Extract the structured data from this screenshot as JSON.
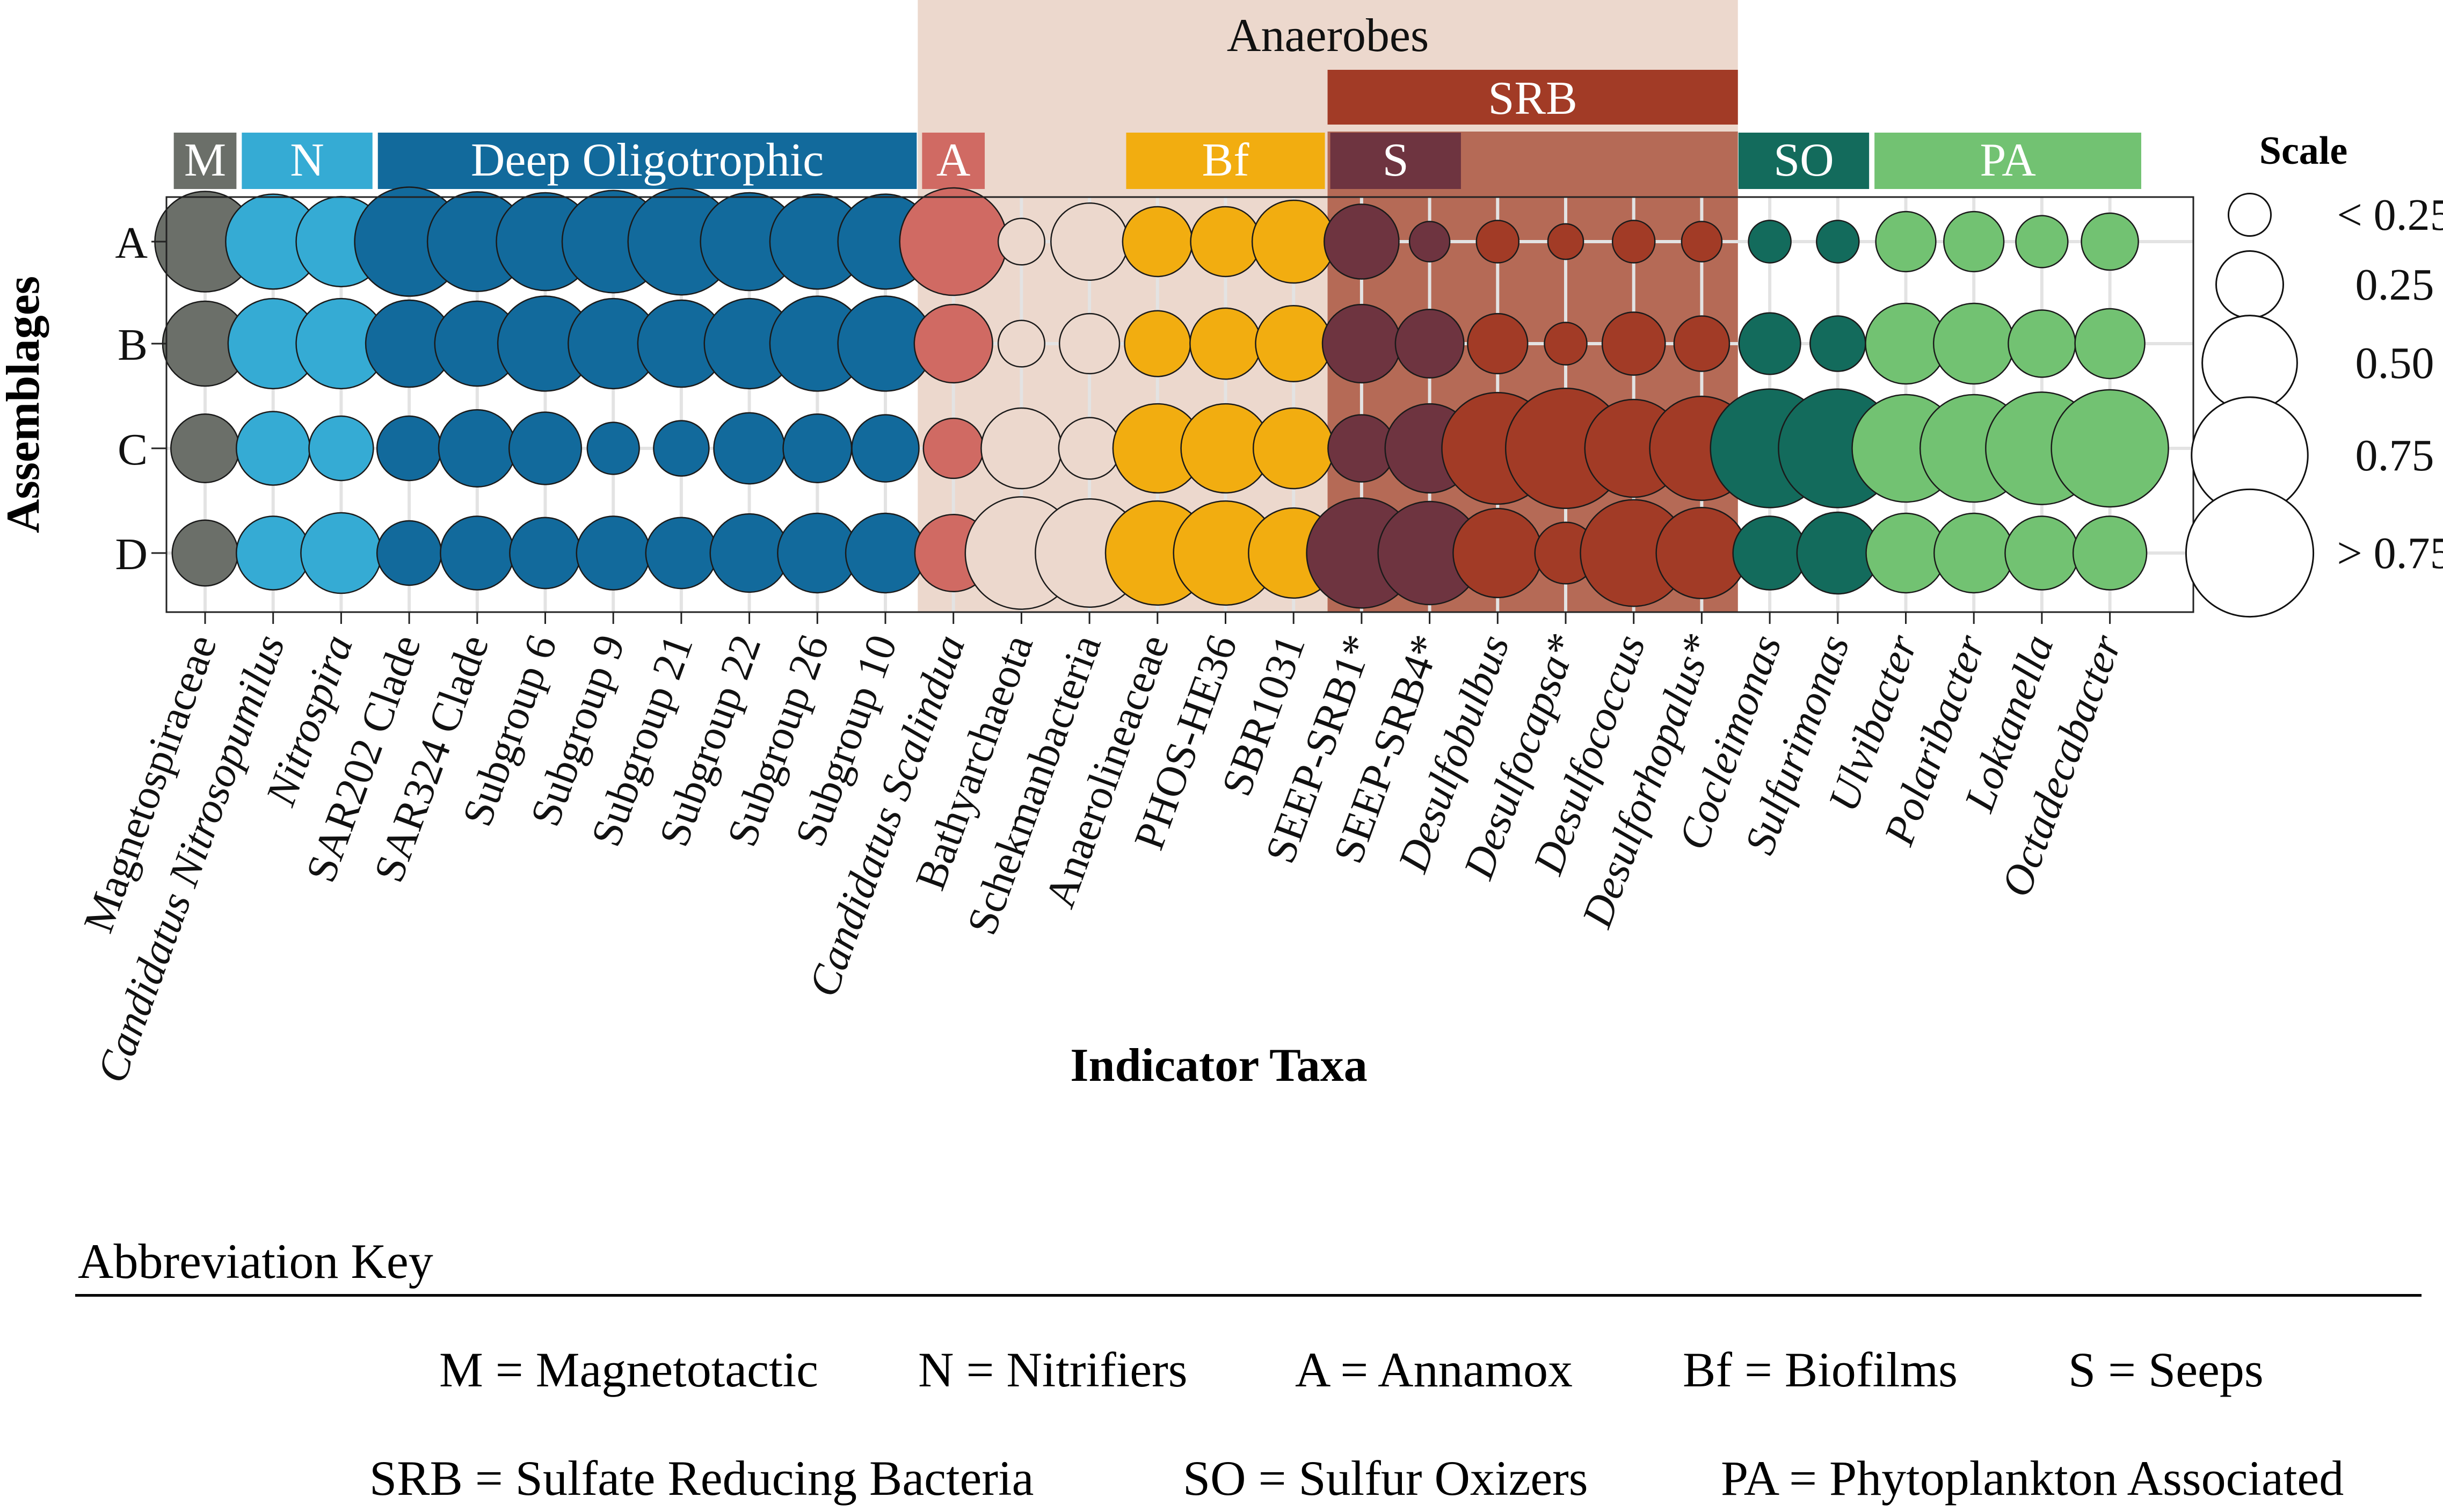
{
  "chart_data": {
    "type": "bubble-matrix",
    "xlabel": "Indicator Taxa",
    "ylabel": "Assemblages",
    "rows": [
      "A",
      "B",
      "C",
      "D"
    ],
    "taxa": [
      {
        "name": "Magnetospiraceae",
        "italic": false,
        "group": "M"
      },
      {
        "name": "Candidatus Nitrosopumilus",
        "italic": true,
        "group": "N"
      },
      {
        "name": "Nitrospira",
        "italic": true,
        "group": "N"
      },
      {
        "name": "SAR202 Clade",
        "italic": false,
        "group": "DO"
      },
      {
        "name": "SAR324  Clade",
        "italic": false,
        "group": "DO"
      },
      {
        "name": "Subgroup 6",
        "italic": false,
        "group": "DO"
      },
      {
        "name": "Subgroup 9",
        "italic": false,
        "group": "DO"
      },
      {
        "name": "Subgroup 21",
        "italic": false,
        "group": "DO"
      },
      {
        "name": "Subgroup 22",
        "italic": false,
        "group": "DO"
      },
      {
        "name": "Subgroup 26",
        "italic": false,
        "group": "DO"
      },
      {
        "name": "Subgroup 10",
        "italic": false,
        "group": "DO"
      },
      {
        "name": "Candidatus Scalindua",
        "italic": true,
        "group": "A"
      },
      {
        "name": "Bathyarchaeota",
        "italic": false,
        "group": "AN"
      },
      {
        "name": "Schekmanbacteria",
        "italic": false,
        "group": "AN"
      },
      {
        "name": "Anaerolineaceae",
        "italic": false,
        "group": "Bf"
      },
      {
        "name": "PHOS-HE36",
        "italic": false,
        "group": "Bf"
      },
      {
        "name": "SBR1031",
        "italic": false,
        "group": "Bf"
      },
      {
        "name": "SEEP-SRB1*",
        "italic": false,
        "group": "S"
      },
      {
        "name": "SEEP-SRB4*",
        "italic": false,
        "group": "S"
      },
      {
        "name": "Desulfobulbus",
        "italic": true,
        "group": "SRB"
      },
      {
        "name": "Desulfocapsa*",
        "italic": true,
        "group": "SRB"
      },
      {
        "name": "Desulfococcus",
        "italic": true,
        "group": "SRB"
      },
      {
        "name": "Desulforhopalus*",
        "italic": true,
        "group": "SRB"
      },
      {
        "name": "Cocleimonas",
        "italic": true,
        "group": "SO"
      },
      {
        "name": "Sulfurimonas",
        "italic": true,
        "group": "SO"
      },
      {
        "name": "Ulvibacter",
        "italic": true,
        "group": "PA"
      },
      {
        "name": "Polaribacter",
        "italic": true,
        "group": "PA"
      },
      {
        "name": "Loktanella",
        "italic": true,
        "group": "PA"
      },
      {
        "name": "Octadecabacter",
        "italic": true,
        "group": "PA"
      }
    ],
    "values": [
      [
        0.56,
        0.5,
        0.45,
        0.66,
        0.55,
        0.53,
        0.58,
        0.63,
        0.53,
        0.5,
        0.5,
        0.64,
        0.12,
        0.33,
        0.27,
        0.27,
        0.38,
        0.31,
        0.09,
        0.1,
        0.07,
        0.1,
        0.09,
        0.1,
        0.1,
        0.2,
        0.2,
        0.15,
        0.18
      ],
      [
        0.4,
        0.45,
        0.45,
        0.42,
        0.4,
        0.5,
        0.45,
        0.42,
        0.45,
        0.5,
        0.5,
        0.34,
        0.12,
        0.2,
        0.24,
        0.28,
        0.32,
        0.34,
        0.26,
        0.2,
        0.1,
        0.22,
        0.17,
        0.21,
        0.17,
        0.36,
        0.36,
        0.25,
        0.27
      ],
      [
        0.26,
        0.3,
        0.23,
        0.23,
        0.33,
        0.29,
        0.15,
        0.17,
        0.28,
        0.26,
        0.25,
        0.2,
        0.36,
        0.21,
        0.44,
        0.44,
        0.36,
        0.25,
        0.44,
        0.69,
        0.8,
        0.53,
        0.6,
        0.78,
        0.78,
        0.64,
        0.64,
        0.7,
        0.76
      ],
      [
        0.24,
        0.3,
        0.36,
        0.23,
        0.3,
        0.28,
        0.3,
        0.28,
        0.34,
        0.35,
        0.35,
        0.33,
        0.7,
        0.65,
        0.6,
        0.6,
        0.45,
        0.67,
        0.59,
        0.44,
        0.21,
        0.63,
        0.46,
        0.3,
        0.37,
        0.35,
        0.35,
        0.3,
        0.3
      ]
    ],
    "groups": [
      {
        "key": "M",
        "label": "M",
        "color": "#6b6f69"
      },
      {
        "key": "N",
        "label": "N",
        "color": "#35abd4"
      },
      {
        "key": "DO",
        "label": "Deep Oligotrophic",
        "color": "#126a9c"
      },
      {
        "key": "A",
        "label": "A",
        "color": "#d06a63"
      },
      {
        "key": "AN",
        "label": "",
        "color": "#ecd8cd"
      },
      {
        "key": "Bf",
        "label": "Bf",
        "color": "#f2ad10"
      },
      {
        "key": "S",
        "label": "S",
        "color": "#6e3440"
      },
      {
        "key": "SRB",
        "label": "",
        "color": "#a23b26"
      },
      {
        "key": "SO",
        "label": "SO",
        "color": "#136b5c"
      },
      {
        "key": "PA",
        "label": "PA",
        "color": "#72c272"
      }
    ],
    "super_labels": {
      "anaerobes": "Anaerobes",
      "srb": "SRB"
    },
    "legend": {
      "title": "Scale",
      "levels": [
        {
          "label": "< 0.25",
          "value": 0.1
        },
        {
          "label": "0.25",
          "value": 0.25
        },
        {
          "label": "0.50",
          "value": 0.5
        },
        {
          "label": "0.75",
          "value": 0.75
        },
        {
          "label": "> 0.75",
          "value": 0.9
        }
      ],
      "position": "right"
    }
  },
  "key": {
    "title": "Abbreviation Key",
    "row1": [
      "M = Magnetotactic",
      "N = Nitrifiers",
      "A = Annamox",
      "Bf = Biofilms",
      "S = Seeps"
    ],
    "row2": [
      "SRB = Sulfate Reducing Bacteria",
      "SO = Sulfur Oxizers",
      "PA = Phytoplankton Associated"
    ]
  },
  "colors": {
    "anaerobes_shade": "#ecd8cd",
    "srb_shade": "#b56a56",
    "srb_band": "#a23b26",
    "grid": "#e3e3e3"
  }
}
